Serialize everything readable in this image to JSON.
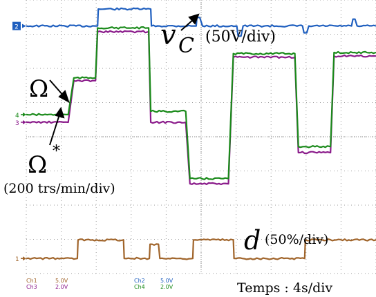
{
  "chart_data": {
    "type": "line",
    "grid": true,
    "xlim": [
      0,
      50
    ],
    "ylim": [
      0,
      100
    ],
    "time_scale": "Temps : 4s/div",
    "series": [
      {
        "name": "v_C",
        "color": "#1f5fbf",
        "marker": "2",
        "annotation": "(50V/div)",
        "x": [
          0,
          10.2,
          10.3,
          17.8,
          17.9,
          24.3,
          24.4,
          24.8,
          25.2,
          30.1,
          30.3,
          30.7,
          31.0,
          39.5,
          39.7,
          40.1,
          40.4,
          46.5,
          46.7,
          47.0,
          47.3,
          50
        ],
        "y": [
          90.5,
          90.5,
          96.7,
          96.7,
          90.5,
          90.5,
          93.6,
          93.6,
          90.5,
          90.5,
          86.8,
          86.8,
          90.5,
          90.5,
          88.0,
          88.0,
          90.5,
          90.5,
          93.0,
          93.0,
          90.5,
          90.5
        ]
      },
      {
        "name": "Ω",
        "color": "#1a8a1a",
        "marker": "4",
        "annotation": "Ω",
        "x": [
          0,
          6.0,
          6.8,
          9.9,
          10.2,
          17.5,
          17.8,
          22.8,
          23.4,
          28.9,
          29.6,
          38.4,
          38.9,
          43.5,
          44.0,
          50
        ],
        "y": [
          58.1,
          58.1,
          71.5,
          71.5,
          89.8,
          89.8,
          59.3,
          59.3,
          34.7,
          34.7,
          80.4,
          80.4,
          46.4,
          46.4,
          80.8,
          80.8
        ]
      },
      {
        "name": "Ω*",
        "color": "#8a1a8a",
        "marker": "3",
        "annotation": "Ω*",
        "x": [
          0,
          6.0,
          6.8,
          9.9,
          10.2,
          17.5,
          17.8,
          22.8,
          23.4,
          28.9,
          29.6,
          38.4,
          38.9,
          43.5,
          44.0,
          50
        ],
        "y": [
          55.3,
          55.3,
          70.5,
          70.5,
          88.4,
          88.4,
          55.3,
          55.3,
          32.8,
          32.8,
          79.1,
          79.1,
          44.2,
          44.2,
          79.5,
          79.5
        ]
      },
      {
        "name": "d",
        "color": "#a0642a",
        "marker": "1",
        "annotation": "d",
        "x": [
          0,
          7.3,
          7.4,
          13.9,
          14.0,
          17.6,
          17.7,
          18.9,
          19.1,
          23.8,
          23.9,
          29.6,
          29.7,
          39.8,
          39.9,
          50
        ],
        "y": [
          5.5,
          5.5,
          12.3,
          12.3,
          5.5,
          5.5,
          10.7,
          10.7,
          5.5,
          5.5,
          12.3,
          12.3,
          5.5,
          5.5,
          12.3,
          12.3
        ]
      }
    ],
    "annotations": {
      "omega": "Ω",
      "omega_ref": "Ω",
      "omega_ref_sup": "*",
      "speed_scale": "(200 trs/min/div)",
      "vc_symbol": "v",
      "vc_sub": "C",
      "vc_scale": "(50V/div)",
      "d_symbol": "d",
      "d_scale": "(50%/div)"
    },
    "channel_settings": [
      {
        "ch": "Ch1",
        "value": "5.0V",
        "color": "#a0642a"
      },
      {
        "ch": "Ch2",
        "value": "5.0V",
        "color": "#1f5fbf"
      },
      {
        "ch": "Ch3",
        "value": "2.0V",
        "color": "#8a1a8a"
      },
      {
        "ch": "Ch4",
        "value": "2.0V",
        "color": "#1a8a1a"
      }
    ]
  }
}
